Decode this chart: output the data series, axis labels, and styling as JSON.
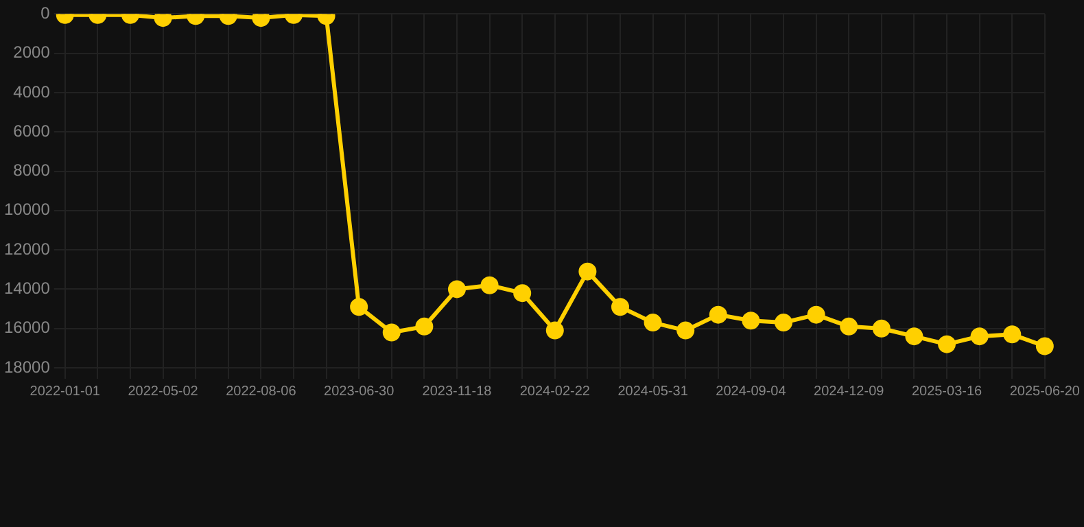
{
  "chart_data": {
    "type": "line",
    "categories": [
      "2022-01-01",
      null,
      null,
      "2022-05-02",
      null,
      null,
      "2022-08-06",
      null,
      null,
      "2023-06-30",
      null,
      null,
      "2023-11-18",
      null,
      null,
      "2024-02-22",
      null,
      null,
      "2024-05-31",
      null,
      null,
      "2024-09-04",
      null,
      null,
      "2024-12-09",
      null,
      null,
      "2025-03-16",
      null,
      null,
      "2025-06-20"
    ],
    "series": [
      {
        "color": "#ffd000",
        "values": [
          50,
          50,
          50,
          200,
          100,
          100,
          200,
          50,
          100,
          14900,
          16200,
          15900,
          14000,
          13800,
          14200,
          16100,
          13100,
          14900,
          15700,
          16100,
          15300,
          15600,
          15700,
          15300,
          15900,
          16000,
          16400,
          16800,
          16400,
          16300,
          16900
        ]
      }
    ],
    "ylim": [
      18000,
      0
    ],
    "yticks": [
      0,
      2000,
      4000,
      6000,
      8000,
      10000,
      12000,
      14000,
      16000,
      18000
    ],
    "grid": true,
    "legend": false,
    "marker": "circle",
    "line_style": "solid"
  }
}
